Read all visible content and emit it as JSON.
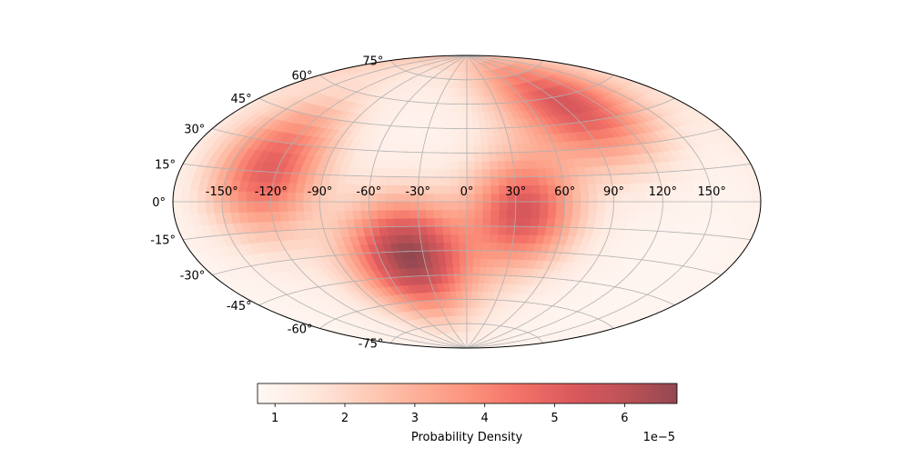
{
  "chart_data": {
    "type": "heatmap",
    "projection": "aitoff",
    "grid": true,
    "colormap": "Reds",
    "xlabel": "",
    "ylabel": "",
    "lon_ticks": [
      "-150°",
      "-120°",
      "-90°",
      "-60°",
      "-30°",
      "0°",
      "30°",
      "60°",
      "90°",
      "120°",
      "150°"
    ],
    "lat_ticks": [
      "-75°",
      "-60°",
      "-45°",
      "-30°",
      "-15°",
      "0°",
      "15°",
      "30°",
      "45°",
      "60°",
      "75°"
    ],
    "lon_tick_values": [
      -150,
      -120,
      -90,
      -60,
      -30,
      0,
      30,
      60,
      90,
      120,
      150
    ],
    "lat_tick_values": [
      -75,
      -60,
      -45,
      -30,
      -15,
      0,
      15,
      30,
      45,
      60,
      75
    ],
    "density_peaks": [
      {
        "lon": -40,
        "lat": -33,
        "value": 6.7
      },
      {
        "lon": 35,
        "lat": -6,
        "value": 5.3
      },
      {
        "lon": -125,
        "lat": 17,
        "value": 5.0
      },
      {
        "lon": 95,
        "lat": 55,
        "value": 5.3
      }
    ],
    "background_value": 0.9,
    "colorbar": {
      "label": "Probability Density",
      "ticks": [
        "1",
        "2",
        "3",
        "4",
        "5",
        "6"
      ],
      "tick_values": [
        1,
        2,
        3,
        4,
        5,
        6
      ],
      "range": [
        0.75,
        6.75
      ],
      "offset_text": "1e−5",
      "colors": [
        "#fff5f0",
        "#fee0d2",
        "#fcbba1",
        "#fc9272",
        "#fb6a4a",
        "#ef3b2c",
        "#cb181d",
        "#a50f15",
        "#67000d"
      ]
    }
  }
}
